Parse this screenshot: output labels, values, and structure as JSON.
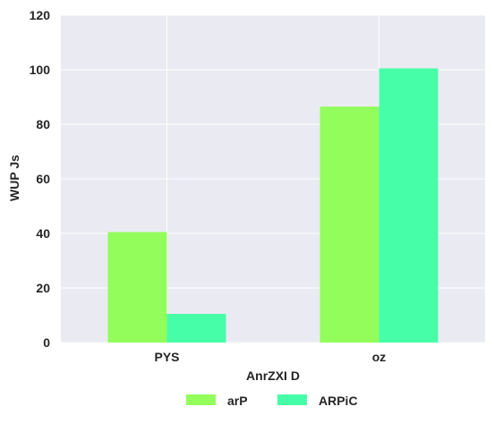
{
  "chart_data": {
    "type": "bar",
    "categories": [
      "PYS",
      "oz"
    ],
    "series": [
      {
        "name": "arP",
        "values": [
          40.5,
          86.5
        ],
        "color": "#93fd5c"
      },
      {
        "name": "ARPiC",
        "values": [
          10.5,
          100.5
        ],
        "color": "#47fea8"
      }
    ],
    "xlabel": "AnrZXI D",
    "ylabel": "WUP Js",
    "ylim": [
      0,
      120
    ],
    "yticks": [
      0,
      20,
      40,
      60,
      80,
      100,
      120
    ],
    "ytick_labels": [
      "0",
      "20",
      "40",
      "60",
      "80",
      "100",
      "120"
    ],
    "grid": true,
    "legend_position": "bottom-center",
    "colors": {
      "plot_background": "#eaeaf2",
      "grid": "#ffffff",
      "text": "#262626"
    }
  }
}
